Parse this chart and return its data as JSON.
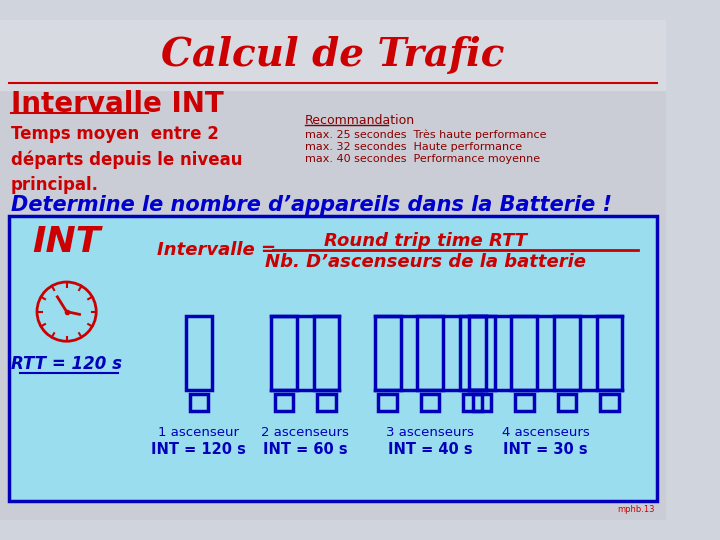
{
  "title": "Calcul de Trafic",
  "title_color": "#CC0000",
  "title_fontsize": 28,
  "subtitle": "Intervalle INT",
  "subtitle_color": "#CC0000",
  "subtitle_fontsize": 20,
  "desc_text": "Temps moyen  entre 2\ndéparts depuis le niveau\nprincipal.",
  "desc_color": "#CC0000",
  "desc_fontsize": 12,
  "rec_title": "Recommandation",
  "rec_title_color": "#880000",
  "rec_fontsize": 9,
  "rec_lines": [
    "max. 25 secondes  Très haute performance",
    "max. 32 secondes  Haute performance",
    "max. 40 secondes  Performance moyenne"
  ],
  "rec_color": "#880000",
  "determine_text": "Determine le nombre d’appareils dans la Batterie !",
  "determine_color": "#0000CC",
  "determine_fontsize": 15,
  "box_bg": "#99DDEE",
  "box_border": "#0000BB",
  "int_label": "INT",
  "int_color": "#CC0000",
  "int_fontsize": 26,
  "formula_prefix": "Intervalle =",
  "formula_num": "Round trip time RTT",
  "formula_den": "Nb. D’ascenseurs de la batterie",
  "formula_color": "#CC0000",
  "formula_fontsize": 13,
  "rtt_label": "RTT = 120 s",
  "rtt_color": "#0000BB",
  "rtt_fontsize": 12,
  "elevator_labels": [
    "1 ascenseur",
    "2 ascenseurs",
    "3 ascenseurs",
    "4 ascenseurs"
  ],
  "int_values": [
    "INT = 120 s",
    "INT = 60 s",
    "INT = 40 s",
    "INT = 30 s"
  ],
  "elevator_color": "#0000BB",
  "slide_bg_top": "#D8DCE4",
  "slide_bg_bottom": "#C8CCD4",
  "hr_color": "#CC0000"
}
